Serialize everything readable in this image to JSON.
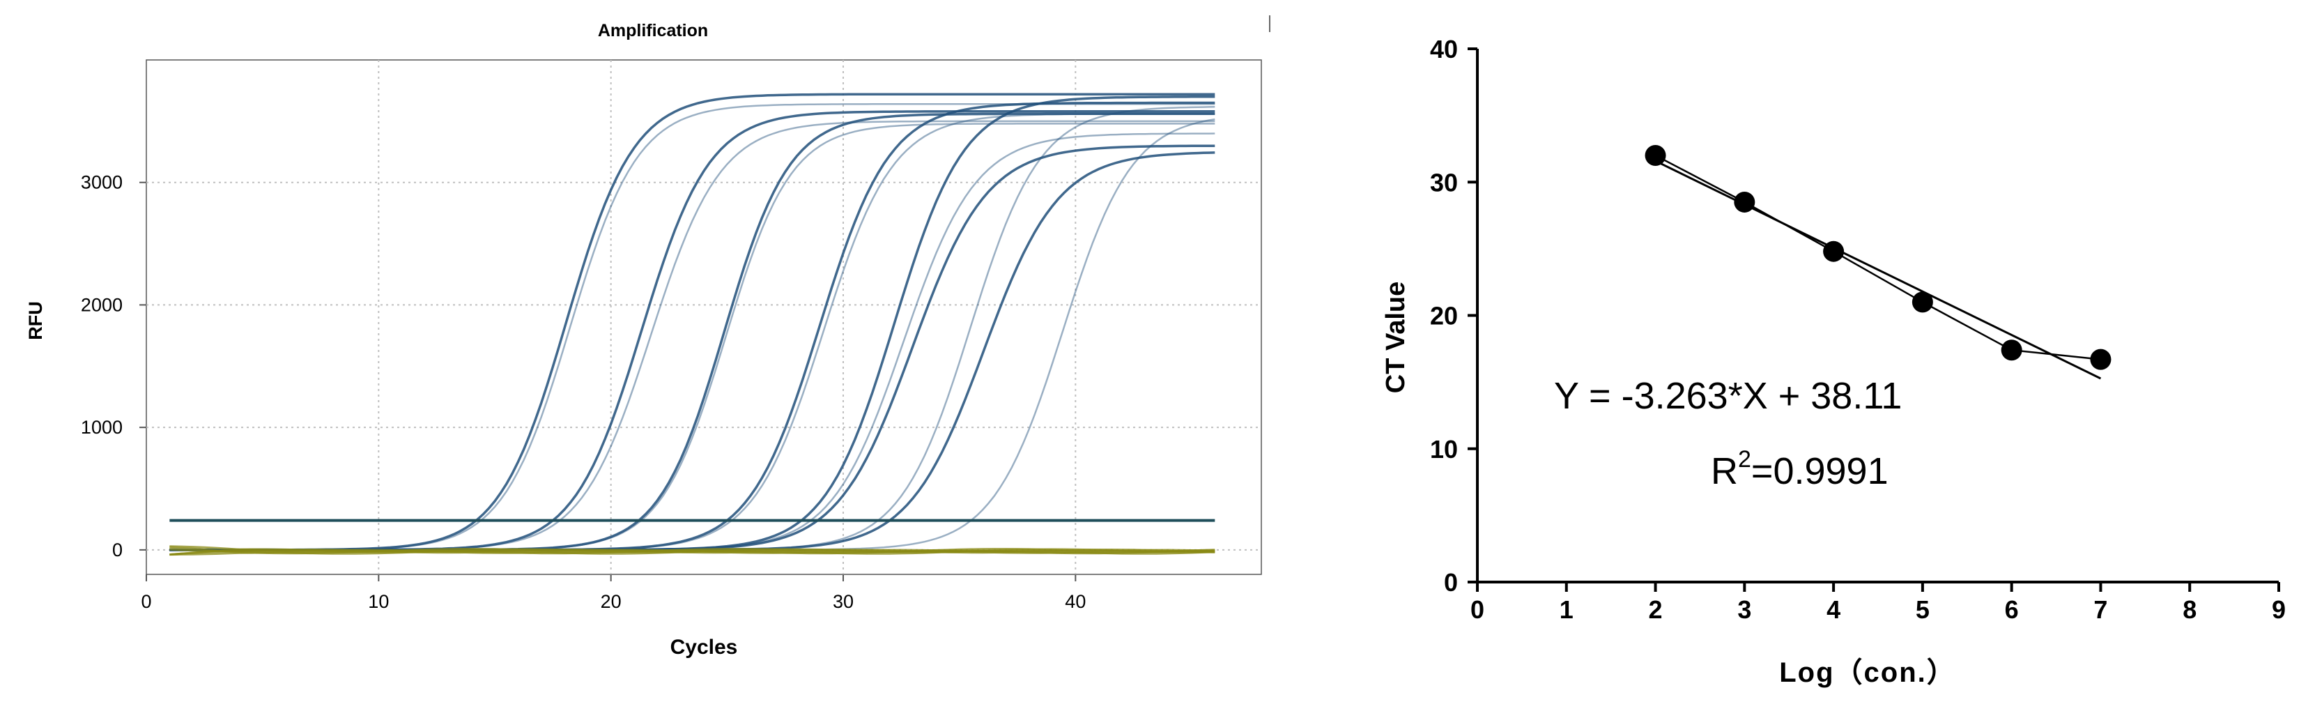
{
  "chart_data": [
    {
      "type": "line",
      "title": "Amplification",
      "xlabel": "Cycles",
      "ylabel": "RFU",
      "xlim": [
        0,
        48
      ],
      "ylim": [
        -200,
        4000
      ],
      "xticks": [
        0,
        10,
        20,
        30,
        40
      ],
      "yticks": [
        0,
        1000,
        2000,
        3000
      ],
      "grid": true,
      "threshold": 240,
      "cycle_range": [
        1,
        46
      ],
      "series": [
        {
          "ct": 14.2,
          "plateau": 3720,
          "slope": 1.45
        },
        {
          "ct": 14.4,
          "plateau": 3640,
          "slope": 1.45
        },
        {
          "ct": 17.5,
          "plateau": 3580,
          "slope": 1.45
        },
        {
          "ct": 17.8,
          "plateau": 3500,
          "slope": 1.5
        },
        {
          "ct": 21.2,
          "plateau": 3560,
          "slope": 1.4
        },
        {
          "ct": 21.3,
          "plateau": 3480,
          "slope": 1.4
        },
        {
          "ct": 25.0,
          "plateau": 3650,
          "slope": 1.5
        },
        {
          "ct": 25.2,
          "plateau": 3560,
          "slope": 1.5
        },
        {
          "ct": 28.2,
          "plateau": 3700,
          "slope": 1.5
        },
        {
          "ct": 28.6,
          "plateau": 3400,
          "slope": 1.55
        },
        {
          "ct": 28.9,
          "plateau": 3300,
          "slope": 1.6
        },
        {
          "ct": 31.5,
          "plateau": 3620,
          "slope": 1.5
        },
        {
          "ct": 32.0,
          "plateau": 3250,
          "slope": 1.6
        },
        {
          "ct": 35.5,
          "plateau": 3560,
          "slope": 1.5
        }
      ],
      "negative_series_count": 6,
      "colors": {
        "amplification": "#1f4e79",
        "negative": "#8a8a14",
        "threshold": "#1f4e5a",
        "grid": "#bfbfbf"
      }
    },
    {
      "type": "scatter",
      "xlabel": "Log（con.）",
      "ylabel": "CT Value",
      "xlim": [
        0,
        9
      ],
      "ylim": [
        0,
        40
      ],
      "xticks": [
        "0",
        "1",
        "2",
        "3",
        "4",
        "5",
        "6",
        "7",
        "8",
        "9"
      ],
      "yticks": [
        "0",
        "10",
        "20",
        "30",
        "40"
      ],
      "points": [
        {
          "x": 2,
          "y": 32.0
        },
        {
          "x": 3,
          "y": 28.5
        },
        {
          "x": 4,
          "y": 24.8
        },
        {
          "x": 5,
          "y": 21.0
        },
        {
          "x": 6,
          "y": 17.4
        },
        {
          "x": 7,
          "y": 16.7
        }
      ],
      "fit": {
        "slope": -3.263,
        "intercept": 38.11,
        "x_range": [
          2,
          7
        ]
      },
      "equation": "Y = -3.263*X + 38.11",
      "r2_prefix": "R",
      "r2_sup": "2",
      "r2_value": "=0.9991",
      "grid": false
    }
  ]
}
